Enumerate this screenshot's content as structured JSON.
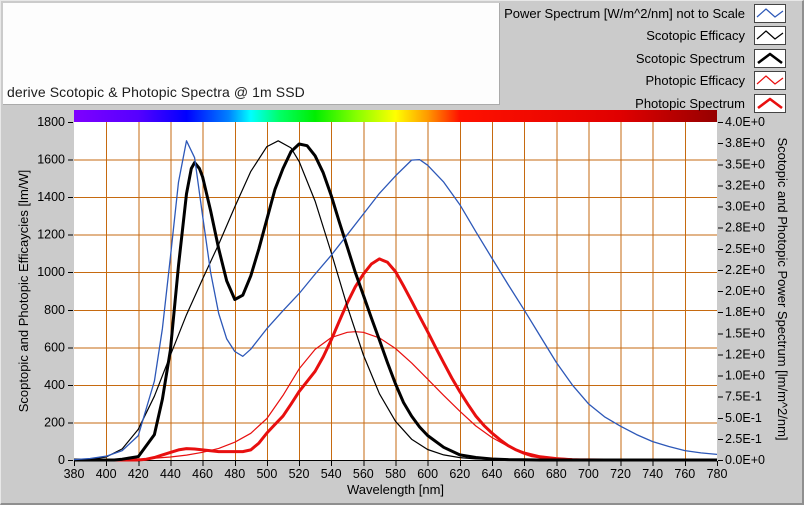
{
  "title_panel": {
    "text": "derive Scotopic & Photopic Spectra @ 1m SSD"
  },
  "legend": {
    "items": [
      {
        "key": "power-spectrum",
        "label": "Power Spectrum [W/m^2/nm] not to Scale",
        "color": "#2d58b8",
        "thick": false
      },
      {
        "key": "scotopic-efficacy",
        "label": "Scotopic Efficacy",
        "color": "#000000",
        "thick": false
      },
      {
        "key": "scotopic-spectrum",
        "label": "Scotopic Spectrum",
        "color": "#000000",
        "thick": true
      },
      {
        "key": "photopic-efficacy",
        "label": "Photopic Efficacy",
        "color": "#e80f0f",
        "thick": false
      },
      {
        "key": "photopic-spectrum",
        "label": "Photopic Spectrum",
        "color": "#e80f0f",
        "thick": true
      }
    ]
  },
  "colors": {
    "window_bg": "#cbcbcb",
    "plot_bg": "#ffffff",
    "grid": "#c66a10",
    "axis_text": "#000000",
    "power_line": "#2d58b8",
    "scotopic_line": "#000000",
    "photopic_line": "#e80f0f"
  },
  "chart_data": {
    "type": "line",
    "xlabel": "Wavelength [nm]",
    "ylabel_left": "Scoptopic and Photopic Efficaycies [lm/W]",
    "ylabel_right": "Scotopic and Photopic Power Spectrum [lm/m^2/nm]",
    "x_range": [
      380,
      780
    ],
    "ylim_left": [
      0,
      1800
    ],
    "ylim_right": [
      0,
      4
    ],
    "grid": true,
    "legend_position": "top-right",
    "x_ticks": [
      380,
      400,
      420,
      440,
      460,
      480,
      500,
      520,
      540,
      560,
      580,
      600,
      620,
      640,
      660,
      680,
      700,
      720,
      740,
      760,
      780
    ],
    "left_ticks": [
      0,
      200,
      400,
      600,
      800,
      1000,
      1200,
      1400,
      1600,
      1800
    ],
    "right_ticks": [
      {
        "v": 0,
        "label": "0.0E+0"
      },
      {
        "v": 0.25,
        "label": "2.5E-1"
      },
      {
        "v": 0.5,
        "label": "5.0E-1"
      },
      {
        "v": 0.75,
        "label": "7.5E-1"
      },
      {
        "v": 1,
        "label": "1.0E+0"
      },
      {
        "v": 1.25,
        "label": "1.2E+0"
      },
      {
        "v": 1.5,
        "label": "1.5E+0"
      },
      {
        "v": 1.75,
        "label": "1.8E+0"
      },
      {
        "v": 2,
        "label": "2.0E+0"
      },
      {
        "v": 2.25,
        "label": "2.2E+0"
      },
      {
        "v": 2.5,
        "label": "2.5E+0"
      },
      {
        "v": 2.75,
        "label": "2.8E+0"
      },
      {
        "v": 3,
        "label": "3.0E+0"
      },
      {
        "v": 3.25,
        "label": "3.2E+0"
      },
      {
        "v": 3.5,
        "label": "3.5E+0"
      },
      {
        "v": 3.75,
        "label": "3.8E+0"
      },
      {
        "v": 4,
        "label": "4.0E+0"
      }
    ],
    "spectrum_bar": {
      "stops": [
        {
          "at": 0.0,
          "color": "#7f00ff"
        },
        {
          "at": 0.1,
          "color": "#5500ff"
        },
        {
          "at": 0.175,
          "color": "#0000ff"
        },
        {
          "at": 0.24,
          "color": "#0080ff"
        },
        {
          "at": 0.275,
          "color": "#00ffff"
        },
        {
          "at": 0.32,
          "color": "#00ff66"
        },
        {
          "at": 0.375,
          "color": "#00ee00"
        },
        {
          "at": 0.44,
          "color": "#88ff00"
        },
        {
          "at": 0.5,
          "color": "#ffff00"
        },
        {
          "at": 0.55,
          "color": "#ff9900"
        },
        {
          "at": 0.6,
          "color": "#ff1100"
        },
        {
          "at": 0.85,
          "color": "#e00000"
        },
        {
          "at": 1.0,
          "color": "#960000"
        }
      ]
    },
    "series": [
      {
        "name": "Photopic Spectrum",
        "key": "photopic-spectrum",
        "axis": "right",
        "color": "#e80f0f",
        "width": 3,
        "points": [
          [
            380,
            0
          ],
          [
            420,
            0
          ],
          [
            425,
            0.01
          ],
          [
            430,
            0.03
          ],
          [
            435,
            0.06
          ],
          [
            440,
            0.09
          ],
          [
            445,
            0.12
          ],
          [
            450,
            0.135
          ],
          [
            455,
            0.13
          ],
          [
            460,
            0.12
          ],
          [
            465,
            0.11
          ],
          [
            470,
            0.1
          ],
          [
            480,
            0.1
          ],
          [
            485,
            0.1
          ],
          [
            490,
            0.12
          ],
          [
            495,
            0.2
          ],
          [
            500,
            0.32
          ],
          [
            505,
            0.42
          ],
          [
            510,
            0.52
          ],
          [
            515,
            0.66
          ],
          [
            520,
            0.81
          ],
          [
            525,
            0.93
          ],
          [
            530,
            1.05
          ],
          [
            535,
            1.22
          ],
          [
            540,
            1.42
          ],
          [
            545,
            1.64
          ],
          [
            550,
            1.86
          ],
          [
            555,
            2.05
          ],
          [
            560,
            2.2
          ],
          [
            565,
            2.32
          ],
          [
            570,
            2.38
          ],
          [
            575,
            2.34
          ],
          [
            580,
            2.23
          ],
          [
            585,
            2.06
          ],
          [
            590,
            1.88
          ],
          [
            595,
            1.7
          ],
          [
            600,
            1.52
          ],
          [
            605,
            1.33
          ],
          [
            610,
            1.15
          ],
          [
            615,
            0.97
          ],
          [
            620,
            0.81
          ],
          [
            625,
            0.66
          ],
          [
            630,
            0.52
          ],
          [
            635,
            0.41
          ],
          [
            640,
            0.32
          ],
          [
            645,
            0.24
          ],
          [
            650,
            0.17
          ],
          [
            655,
            0.12
          ],
          [
            660,
            0.08
          ],
          [
            665,
            0.05
          ],
          [
            670,
            0.035
          ],
          [
            675,
            0.022
          ],
          [
            680,
            0.012
          ],
          [
            690,
            0.004
          ],
          [
            700,
            0.001
          ],
          [
            710,
            0
          ],
          [
            780,
            0
          ]
        ]
      },
      {
        "name": "Photopic Efficacy",
        "key": "photopic-efficacy",
        "axis": "left",
        "color": "#e80f0f",
        "width": 1.2,
        "points": [
          [
            380,
            0
          ],
          [
            400,
            0
          ],
          [
            420,
            3
          ],
          [
            440,
            16
          ],
          [
            450,
            26
          ],
          [
            460,
            41
          ],
          [
            470,
            62
          ],
          [
            480,
            95
          ],
          [
            490,
            142
          ],
          [
            500,
            221
          ],
          [
            510,
            344
          ],
          [
            520,
            485
          ],
          [
            530,
            589
          ],
          [
            540,
            652
          ],
          [
            550,
            680
          ],
          [
            555,
            683
          ],
          [
            560,
            680
          ],
          [
            570,
            650
          ],
          [
            580,
            594
          ],
          [
            590,
            517
          ],
          [
            600,
            431
          ],
          [
            610,
            344
          ],
          [
            620,
            260
          ],
          [
            630,
            181
          ],
          [
            640,
            120
          ],
          [
            650,
            73
          ],
          [
            660,
            42
          ],
          [
            670,
            22
          ],
          [
            680,
            12
          ],
          [
            690,
            6
          ],
          [
            700,
            3
          ],
          [
            710,
            1
          ],
          [
            730,
            0
          ],
          [
            780,
            0
          ]
        ]
      },
      {
        "name": "Scotopic Spectrum",
        "key": "scotopic-spectrum",
        "axis": "right",
        "color": "#000000",
        "width": 3,
        "points": [
          [
            380,
            0
          ],
          [
            405,
            0
          ],
          [
            410,
            0.01
          ],
          [
            420,
            0.04
          ],
          [
            430,
            0.3
          ],
          [
            435,
            0.72
          ],
          [
            440,
            1.3
          ],
          [
            445,
            2.3
          ],
          [
            450,
            3.15
          ],
          [
            453,
            3.45
          ],
          [
            455,
            3.52
          ],
          [
            458,
            3.45
          ],
          [
            460,
            3.35
          ],
          [
            465,
            2.95
          ],
          [
            470,
            2.5
          ],
          [
            475,
            2.12
          ],
          [
            480,
            1.9
          ],
          [
            485,
            1.95
          ],
          [
            490,
            2.18
          ],
          [
            495,
            2.5
          ],
          [
            500,
            2.85
          ],
          [
            505,
            3.2
          ],
          [
            510,
            3.45
          ],
          [
            515,
            3.65
          ],
          [
            520,
            3.74
          ],
          [
            525,
            3.72
          ],
          [
            530,
            3.6
          ],
          [
            535,
            3.4
          ],
          [
            540,
            3.13
          ],
          [
            545,
            2.82
          ],
          [
            550,
            2.52
          ],
          [
            555,
            2.22
          ],
          [
            560,
            1.95
          ],
          [
            565,
            1.68
          ],
          [
            570,
            1.42
          ],
          [
            575,
            1.15
          ],
          [
            580,
            0.9
          ],
          [
            585,
            0.68
          ],
          [
            590,
            0.52
          ],
          [
            595,
            0.39
          ],
          [
            600,
            0.29
          ],
          [
            610,
            0.15
          ],
          [
            620,
            0.06
          ],
          [
            630,
            0.03
          ],
          [
            640,
            0.012
          ],
          [
            650,
            0.005
          ],
          [
            660,
            0.002
          ],
          [
            670,
            0
          ],
          [
            780,
            0
          ]
        ]
      },
      {
        "name": "Scotopic Efficacy",
        "key": "scotopic-efficacy",
        "axis": "left",
        "color": "#000000",
        "width": 1.2,
        "points": [
          [
            380,
            1
          ],
          [
            390,
            4
          ],
          [
            400,
            16
          ],
          [
            410,
            59
          ],
          [
            420,
            164
          ],
          [
            430,
            340
          ],
          [
            440,
            558
          ],
          [
            450,
            774
          ],
          [
            460,
            964
          ],
          [
            470,
            1149
          ],
          [
            480,
            1348
          ],
          [
            490,
            1537
          ],
          [
            500,
            1669
          ],
          [
            507,
            1700
          ],
          [
            515,
            1662
          ],
          [
            520,
            1590
          ],
          [
            530,
            1379
          ],
          [
            540,
            1105
          ],
          [
            550,
            818
          ],
          [
            560,
            559
          ],
          [
            570,
            353
          ],
          [
            580,
            206
          ],
          [
            590,
            111
          ],
          [
            600,
            56
          ],
          [
            610,
            27
          ],
          [
            620,
            13
          ],
          [
            630,
            6
          ],
          [
            640,
            3
          ],
          [
            650,
            1
          ],
          [
            665,
            0
          ],
          [
            780,
            0
          ]
        ]
      },
      {
        "name": "Power Spectrum [W/m^2/nm] not to Scale",
        "key": "power-spectrum",
        "axis": "left",
        "color": "#2d58b8",
        "width": 1.3,
        "points": [
          [
            380,
            2
          ],
          [
            390,
            8
          ],
          [
            400,
            20
          ],
          [
            410,
            50
          ],
          [
            420,
            130
          ],
          [
            430,
            420
          ],
          [
            435,
            700
          ],
          [
            440,
            1080
          ],
          [
            445,
            1480
          ],
          [
            450,
            1700
          ],
          [
            455,
            1610
          ],
          [
            460,
            1300
          ],
          [
            465,
            1000
          ],
          [
            470,
            780
          ],
          [
            475,
            645
          ],
          [
            480,
            578
          ],
          [
            485,
            552
          ],
          [
            490,
            590
          ],
          [
            500,
            700
          ],
          [
            510,
            795
          ],
          [
            520,
            886
          ],
          [
            530,
            990
          ],
          [
            540,
            1090
          ],
          [
            550,
            1200
          ],
          [
            560,
            1310
          ],
          [
            570,
            1420
          ],
          [
            580,
            1513
          ],
          [
            590,
            1597
          ],
          [
            595,
            1600
          ],
          [
            600,
            1570
          ],
          [
            610,
            1480
          ],
          [
            620,
            1360
          ],
          [
            630,
            1215
          ],
          [
            640,
            1075
          ],
          [
            650,
            935
          ],
          [
            660,
            800
          ],
          [
            670,
            660
          ],
          [
            680,
            520
          ],
          [
            690,
            400
          ],
          [
            700,
            300
          ],
          [
            710,
            230
          ],
          [
            720,
            180
          ],
          [
            730,
            135
          ],
          [
            740,
            98
          ],
          [
            750,
            72
          ],
          [
            760,
            50
          ],
          [
            770,
            38
          ],
          [
            780,
            30
          ]
        ]
      }
    ]
  }
}
